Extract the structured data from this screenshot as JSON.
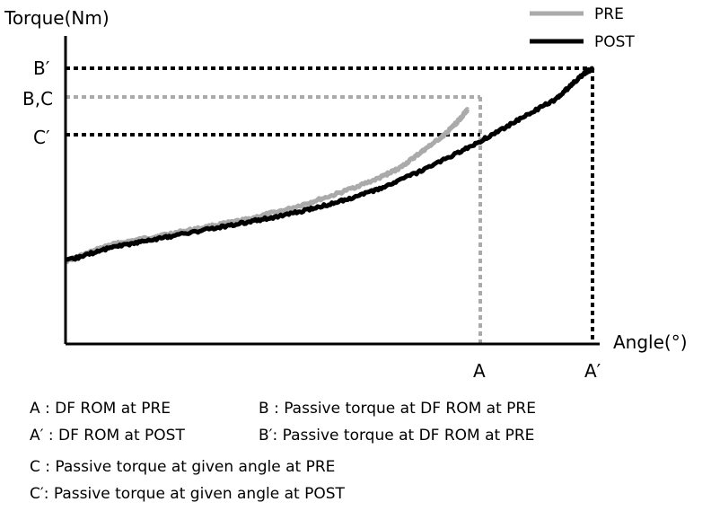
{
  "chart_data": {
    "type": "line",
    "title": "",
    "ylabel": "Torque(Nm)",
    "xlabel": "Angle(°)",
    "grid": false,
    "legend_position": "top-right",
    "colors": {
      "PRE": "#aaaaaa",
      "POST": "#000000"
    },
    "series": [
      {
        "name": "PRE",
        "style": "solid",
        "points": [
          [
            0,
            0.3
          ],
          [
            0.1,
            0.36
          ],
          [
            0.2,
            0.39
          ],
          [
            0.3,
            0.42
          ],
          [
            0.4,
            0.45
          ],
          [
            0.5,
            0.49
          ],
          [
            0.6,
            0.54
          ],
          [
            0.7,
            0.6
          ],
          [
            0.75,
            0.64
          ],
          [
            0.8,
            0.7
          ],
          [
            0.85,
            0.76
          ],
          [
            0.88,
            0.81
          ],
          [
            0.9,
            0.85
          ]
        ]
      },
      {
        "name": "POST",
        "style": "solid",
        "points": [
          [
            0,
            0.3
          ],
          [
            0.1,
            0.35
          ],
          [
            0.2,
            0.38
          ],
          [
            0.3,
            0.41
          ],
          [
            0.4,
            0.44
          ],
          [
            0.5,
            0.47
          ],
          [
            0.6,
            0.51
          ],
          [
            0.7,
            0.56
          ],
          [
            0.8,
            0.63
          ],
          [
            0.9,
            0.71
          ],
          [
            1.0,
            0.8
          ],
          [
            1.1,
            0.89
          ],
          [
            1.16,
            0.98
          ],
          [
            1.18,
            1.0
          ]
        ]
      }
    ],
    "x_ticks": [
      "A",
      "A′"
    ],
    "y_ticks": [
      "B′",
      "B,C",
      "C′"
    ],
    "reference_lines": [
      {
        "label": "B,C",
        "style": "dashed-gray"
      },
      {
        "label": "C′",
        "style": "dotted-black"
      },
      {
        "label": "B′",
        "style": "dotted-black"
      },
      {
        "label": "A",
        "style": "dashed-gray"
      },
      {
        "label": "A′",
        "style": "dotted-black"
      }
    ]
  },
  "notes": {
    "a": "A : DF ROM at PRE",
    "a_prime": "A′ : DF ROM at POST",
    "b": "B : Passive torque at DF ROM at PRE",
    "b_prime": "B′: Passive torque at DF ROM at PRE",
    "c": "C : Passive torque at given angle at PRE",
    "c_prime": "C′: Passive torque at given angle at POST"
  }
}
